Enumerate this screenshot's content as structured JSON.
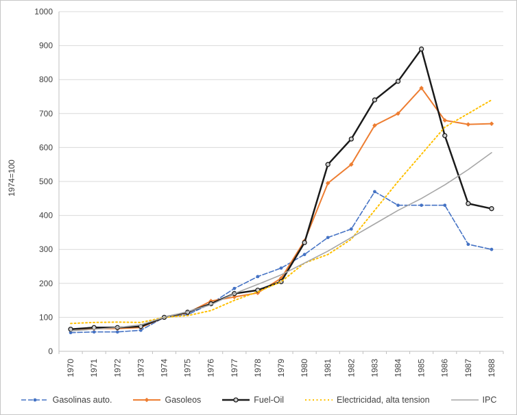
{
  "chart_data": {
    "type": "line",
    "title": "",
    "xlabel": "",
    "ylabel": "1974=100",
    "ylim": [
      0,
      1000
    ],
    "ytick_step": 100,
    "grid": true,
    "legend_position": "bottom",
    "categories": [
      "1970",
      "1971",
      "1972",
      "1973",
      "1974",
      "1975",
      "1976",
      "1977",
      "1978",
      "1979",
      "1980",
      "1981",
      "1982",
      "1983",
      "1984",
      "1985",
      "1986",
      "1987",
      "1988"
    ],
    "series": [
      {
        "name": "Gasolinas auto.",
        "color": "#4472C4",
        "dash": "7 3",
        "marker": "dot",
        "width": 1.6,
        "values": [
          55,
          57,
          57,
          62,
          100,
          108,
          140,
          185,
          220,
          245,
          285,
          335,
          360,
          470,
          430,
          430,
          430,
          315,
          300
        ]
      },
      {
        "name": "Gasoleos",
        "color": "#ED7D31",
        "dash": "",
        "marker": "diamond",
        "width": 2,
        "values": [
          65,
          67,
          67,
          70,
          100,
          113,
          148,
          160,
          172,
          215,
          325,
          495,
          550,
          665,
          700,
          775,
          680,
          668,
          670
        ]
      },
      {
        "name": "Fuel-Oil",
        "color": "#1a1a1a",
        "dash": "",
        "marker": "circle",
        "width": 2.5,
        "values": [
          65,
          70,
          70,
          73,
          100,
          115,
          140,
          170,
          180,
          205,
          320,
          550,
          625,
          740,
          795,
          890,
          635,
          435,
          420
        ]
      },
      {
        "name": "Electricidad, alta tension",
        "color": "#FFC000",
        "dash": "2 3.5",
        "marker": "none",
        "width": 2,
        "values": [
          82,
          85,
          86,
          85,
          100,
          105,
          120,
          150,
          175,
          205,
          260,
          285,
          330,
          415,
          500,
          580,
          660,
          700,
          740
        ]
      },
      {
        "name": "IPC",
        "color": "#A6A6A6",
        "dash": "",
        "marker": "none",
        "width": 1.6,
        "values": [
          60,
          65,
          70,
          78,
          100,
          117,
          137,
          170,
          197,
          225,
          260,
          295,
          335,
          375,
          415,
          450,
          490,
          535,
          585
        ]
      }
    ],
    "colors": {
      "gridline": "#d9d9d9",
      "axis": "#bfbfbf",
      "tick_text": "#404040",
      "marker_fill": "#d0d0d0"
    }
  }
}
